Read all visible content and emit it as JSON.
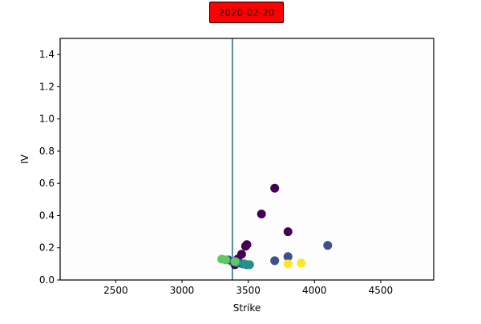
{
  "chart_data": {
    "type": "scatter",
    "title": "2020-02-20",
    "xlabel": "Strike",
    "ylabel": "IV",
    "xlim": [
      2080,
      4900
    ],
    "ylim": [
      0.0,
      1.5
    ],
    "xticks": [
      "2500",
      "3000",
      "3500",
      "4000",
      "4500"
    ],
    "yticks": [
      "0.0",
      "0.2",
      "0.4",
      "0.6",
      "0.8",
      "1.0",
      "1.2",
      "1.4"
    ],
    "grid": false,
    "vline": {
      "x": 3380,
      "color": "#1f6a85"
    },
    "points": [
      {
        "x": 3400,
        "y": 0.095,
        "color": "#440154"
      },
      {
        "x": 3450,
        "y": 0.16,
        "color": "#440154"
      },
      {
        "x": 3480,
        "y": 0.21,
        "color": "#440154"
      },
      {
        "x": 3490,
        "y": 0.22,
        "color": "#440154"
      },
      {
        "x": 3600,
        "y": 0.41,
        "color": "#440154"
      },
      {
        "x": 3700,
        "y": 0.57,
        "color": "#440154"
      },
      {
        "x": 3800,
        "y": 0.3,
        "color": "#440154"
      },
      {
        "x": 3420,
        "y": 0.13,
        "color": "#440154"
      },
      {
        "x": 3350,
        "y": 0.125,
        "color": "#3b528b"
      },
      {
        "x": 3380,
        "y": 0.115,
        "color": "#3b528b"
      },
      {
        "x": 3430,
        "y": 0.105,
        "color": "#3b528b"
      },
      {
        "x": 3460,
        "y": 0.1,
        "color": "#3b528b"
      },
      {
        "x": 3490,
        "y": 0.095,
        "color": "#3b528b"
      },
      {
        "x": 3700,
        "y": 0.12,
        "color": "#3b528b"
      },
      {
        "x": 3800,
        "y": 0.145,
        "color": "#3b528b"
      },
      {
        "x": 4100,
        "y": 0.215,
        "color": "#3b528b"
      },
      {
        "x": 3410,
        "y": 0.11,
        "color": "#21918c"
      },
      {
        "x": 3470,
        "y": 0.1,
        "color": "#21918c"
      },
      {
        "x": 3510,
        "y": 0.095,
        "color": "#21918c"
      },
      {
        "x": 3300,
        "y": 0.13,
        "color": "#5ec962"
      },
      {
        "x": 3330,
        "y": 0.125,
        "color": "#5ec962"
      },
      {
        "x": 3400,
        "y": 0.115,
        "color": "#5ec962"
      },
      {
        "x": 3800,
        "y": 0.1,
        "color": "#fde725"
      },
      {
        "x": 3900,
        "y": 0.105,
        "color": "#fde725"
      }
    ]
  }
}
